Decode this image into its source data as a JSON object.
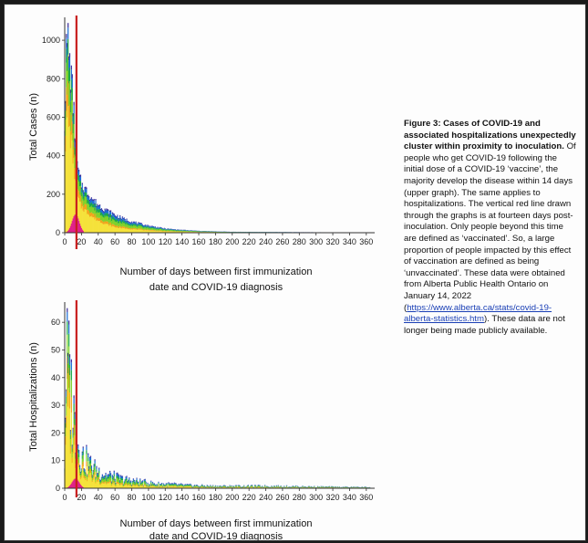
{
  "chart_data": [
    {
      "type": "area",
      "ylabel": "Total Cases (n)",
      "xlabel_line1": "Number of days between first immunization",
      "xlabel_line2": "date and COVID-19 diagnosis",
      "xticks": [
        0,
        20,
        40,
        60,
        80,
        100,
        120,
        140,
        160,
        180,
        200,
        220,
        240,
        260,
        280,
        300,
        320,
        340,
        360
      ],
      "yticks": [
        0,
        200,
        400,
        600,
        800,
        1000
      ],
      "ylim": [
        0,
        1100
      ],
      "xlim": [
        0,
        370
      ],
      "vline_x": 14,
      "series_envelope": {
        "x": [
          0,
          2,
          4,
          6,
          8,
          10,
          12,
          14,
          16,
          18,
          20,
          25,
          30,
          35,
          40,
          50,
          60,
          70,
          80,
          90,
          100,
          110,
          120,
          140,
          160,
          180,
          200,
          240,
          280,
          320,
          360
        ],
        "y": [
          600,
          960,
          1040,
          900,
          820,
          700,
          560,
          420,
          330,
          290,
          260,
          230,
          200,
          170,
          150,
          120,
          95,
          75,
          60,
          48,
          38,
          30,
          22,
          15,
          10,
          7,
          5,
          4,
          3,
          2,
          1
        ]
      }
    },
    {
      "type": "area",
      "ylabel": "Total Hospitalizations (n)",
      "xlabel_line1": "Number of days between first immunization",
      "xlabel_line2": "date and COVID-19 diagnosis",
      "xticks": [
        0,
        20,
        40,
        60,
        80,
        100,
        120,
        140,
        160,
        180,
        200,
        220,
        240,
        260,
        280,
        300,
        320,
        340,
        360
      ],
      "yticks": [
        0,
        10,
        20,
        30,
        40,
        50,
        60
      ],
      "ylim": [
        0,
        66
      ],
      "xlim": [
        0,
        370
      ],
      "vline_x": 14,
      "series_envelope": {
        "x": [
          0,
          2,
          4,
          6,
          8,
          10,
          12,
          14,
          16,
          18,
          20,
          25,
          30,
          35,
          40,
          50,
          60,
          70,
          80,
          90,
          100,
          110,
          120,
          140,
          160,
          180,
          200,
          240,
          280,
          320,
          360
        ],
        "y": [
          12,
          58,
          54,
          50,
          42,
          36,
          30,
          25,
          20,
          17,
          15,
          13,
          11,
          9,
          8,
          6,
          5,
          4,
          3.5,
          3,
          2.5,
          2,
          2,
          1.5,
          1.2,
          1,
          1,
          1,
          0.8,
          0.6,
          0.5
        ]
      }
    }
  ],
  "caption": {
    "bold": "Figure 3: Cases of COVID-19 and associated hospitalizations unexpectedly cluster within proximity to inoculation.",
    "text": " Of people who get COVID-19 following the initial dose of a COVID-19 ‘vaccine’, the majority develop the disease within 14 days (upper graph). The same applies to hospitalizations. The vertical red line drawn through the graphs is at fourteen days post-inoculation. Only people beyond this time are defined as ‘vaccinated’. So, a large proportion of people impacted by this effect of vaccination are defined as being ‘unvaccinated’. These data were obtained from Alberta Public Health Ontario on January 14, 2022 (",
    "link": "https://www.alberta.ca/stats/covid-19-alberta-statistics.htm",
    "tail": "). These data are not longer being made publicly available."
  },
  "colors": {
    "layers": [
      "#f5e23a",
      "#f2a51c",
      "#7fd12a",
      "#1aa84a",
      "#1b6fd6",
      "#3b2d9c"
    ],
    "magenta": "#e0208a",
    "red_line": "#c81e1e"
  }
}
